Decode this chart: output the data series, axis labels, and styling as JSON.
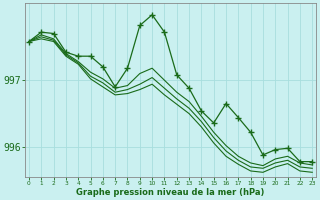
{
  "title": "Graphe pression niveau de la mer (hPa)",
  "background_color": "#caf0f0",
  "grid_color": "#a8dede",
  "line_color": "#1a6b1a",
  "x_ticks": [
    0,
    1,
    2,
    3,
    4,
    5,
    6,
    7,
    8,
    9,
    10,
    11,
    12,
    13,
    14,
    15,
    16,
    17,
    18,
    19,
    20,
    21,
    22,
    23
  ],
  "y_ticks": [
    996,
    997
  ],
  "ylim": [
    995.55,
    998.15
  ],
  "xlim": [
    -0.3,
    23.3
  ],
  "series1": [
    997.58,
    997.72,
    997.7,
    997.42,
    997.36,
    997.36,
    997.2,
    996.9,
    997.18,
    997.82,
    997.98,
    997.72,
    997.08,
    996.88,
    996.54,
    996.36,
    996.65,
    996.44,
    996.22,
    995.88,
    995.96,
    995.98,
    995.78,
    995.78
  ],
  "series2": [
    997.58,
    997.68,
    997.62,
    997.4,
    997.28,
    997.12,
    997.02,
    996.88,
    996.92,
    997.1,
    997.18,
    997.0,
    996.82,
    996.68,
    996.46,
    996.22,
    996.02,
    995.86,
    995.76,
    995.72,
    995.82,
    995.86,
    995.76,
    995.73
  ],
  "series3": [
    997.58,
    997.65,
    997.6,
    997.38,
    997.26,
    997.06,
    996.96,
    996.82,
    996.86,
    996.94,
    997.04,
    996.88,
    996.72,
    996.58,
    996.38,
    996.14,
    995.94,
    995.8,
    995.7,
    995.68,
    995.76,
    995.8,
    995.7,
    995.68
  ],
  "series4": [
    997.58,
    997.62,
    997.58,
    997.36,
    997.24,
    997.02,
    996.9,
    996.78,
    996.8,
    996.86,
    996.94,
    996.78,
    996.64,
    996.5,
    996.3,
    996.06,
    995.86,
    995.74,
    995.64,
    995.62,
    995.7,
    995.75,
    995.64,
    995.62
  ]
}
